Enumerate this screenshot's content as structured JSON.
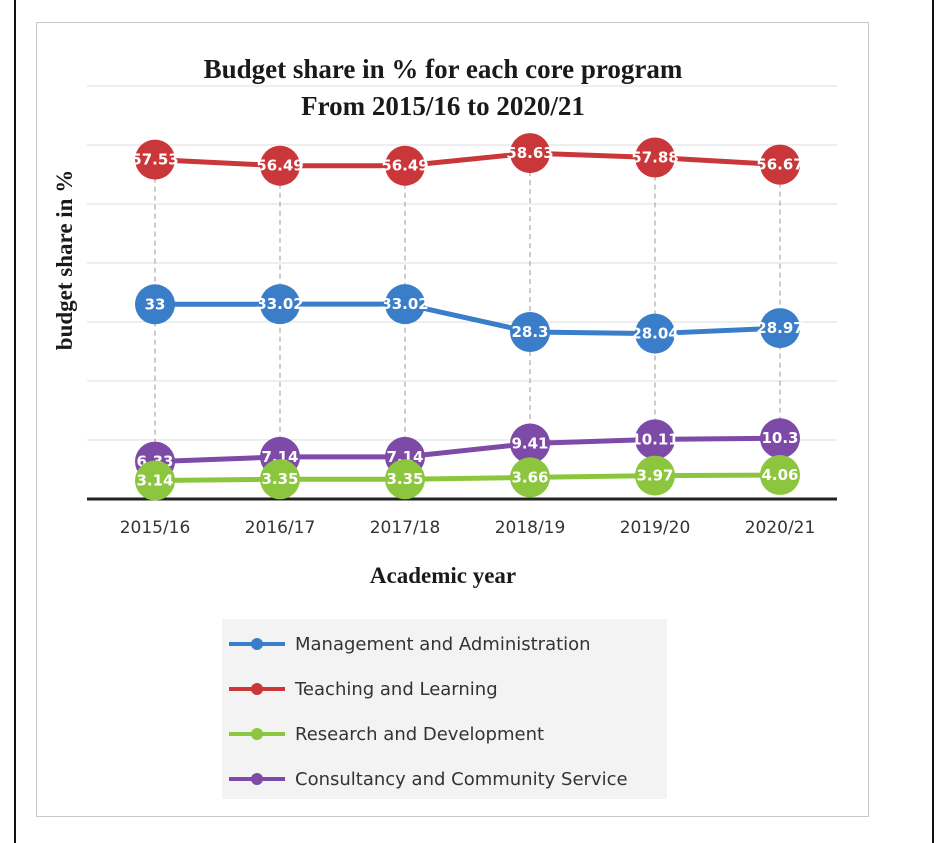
{
  "chart_data": {
    "type": "line",
    "title": "Budget share in % for each core program",
    "subtitle": "From 2015/16 to 2020/21",
    "xlabel": "Academic year",
    "ylabel": "budget share in %",
    "categories": [
      "2015/16",
      "2016/17",
      "2017/18",
      "2018/19",
      "2019/20",
      "2020/21"
    ],
    "ylim": [
      0,
      70
    ],
    "grid": true,
    "legend_position": "bottom",
    "series": [
      {
        "name": "Management and Administration",
        "color": "#3a7dc9",
        "values": [
          33,
          33.02,
          33.02,
          28.3,
          28.04,
          28.97
        ],
        "labels": [
          "33",
          "33.02",
          "33.02",
          "28.3",
          "28.04",
          "28.97"
        ]
      },
      {
        "name": "Teaching and Learning",
        "color": "#c9373a",
        "values": [
          57.53,
          56.49,
          56.49,
          58.63,
          57.88,
          56.67
        ],
        "labels": [
          "57.53",
          "56.49",
          "56.49",
          "58.63",
          "57.88",
          "56.67"
        ]
      },
      {
        "name": "Research and Development",
        "color": "#8cc63e",
        "values": [
          3.14,
          3.35,
          3.35,
          3.66,
          3.97,
          4.06
        ],
        "labels": [
          "3.14",
          "3.35",
          "3.35",
          "3.66",
          "3.97",
          "4.06"
        ]
      },
      {
        "name": "Consultancy and Community Service",
        "color": "#7d4aa8",
        "values": [
          6.33,
          7.14,
          7.14,
          9.41,
          10.11,
          10.3
        ],
        "labels": [
          "6.33",
          "7.14",
          "7.14",
          "9.41",
          "10.11",
          "10.3"
        ]
      }
    ]
  }
}
